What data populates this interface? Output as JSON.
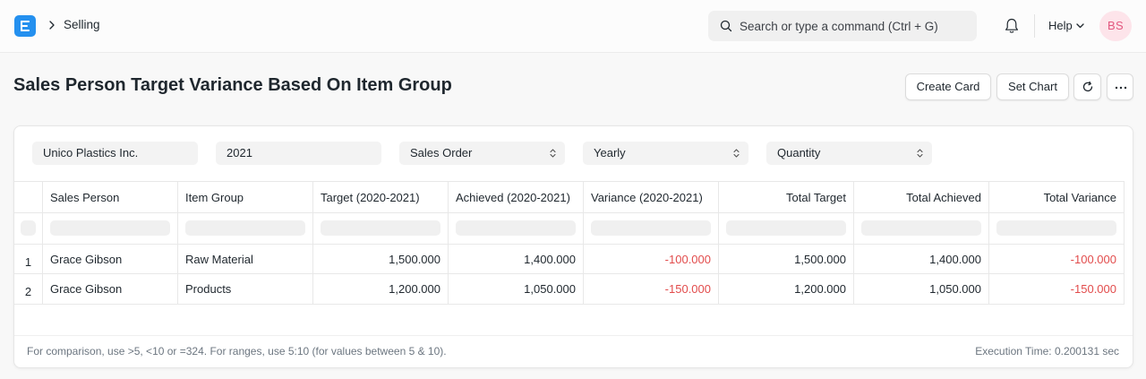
{
  "navbar": {
    "breadcrumb": "Selling",
    "search_placeholder": "Search or type a command (Ctrl + G)",
    "help_label": "Help",
    "avatar_initials": "BS"
  },
  "page": {
    "title": "Sales Person Target Variance Based On Item Group",
    "create_card_label": "Create Card",
    "set_chart_label": "Set Chart"
  },
  "filters": {
    "company": "Unico Plastics Inc.",
    "fiscal_year": "2021",
    "doctype": "Sales Order",
    "period": "Yearly",
    "target_on": "Quantity"
  },
  "table": {
    "columns": [
      "Sales Person",
      "Item Group",
      "Target (2020-2021)",
      "Achieved (2020-2021)",
      "Variance (2020-2021)",
      "Total Target",
      "Total Achieved",
      "Total Variance"
    ],
    "rows": [
      {
        "num": "1",
        "cells": [
          "Grace Gibson",
          "Raw Material",
          "1,500.000",
          "1,400.000",
          "-100.000",
          "1,500.000",
          "1,400.000",
          "-100.000"
        ]
      },
      {
        "num": "2",
        "cells": [
          "Grace Gibson",
          "Products",
          "1,200.000",
          "1,050.000",
          "-150.000",
          "1,200.000",
          "1,050.000",
          "-150.000"
        ]
      }
    ]
  },
  "footer": {
    "note": "For comparison, use >5, <10 or =324. For ranges, use 5:10 (for values between 5 & 10).",
    "execution_time": "Execution Time: 0.200131 sec"
  },
  "colors": {
    "brand": "#2490ef",
    "negative": "#e24c4c",
    "avatar_bg": "#fde4ea",
    "avatar_fg": "#e3577f"
  }
}
